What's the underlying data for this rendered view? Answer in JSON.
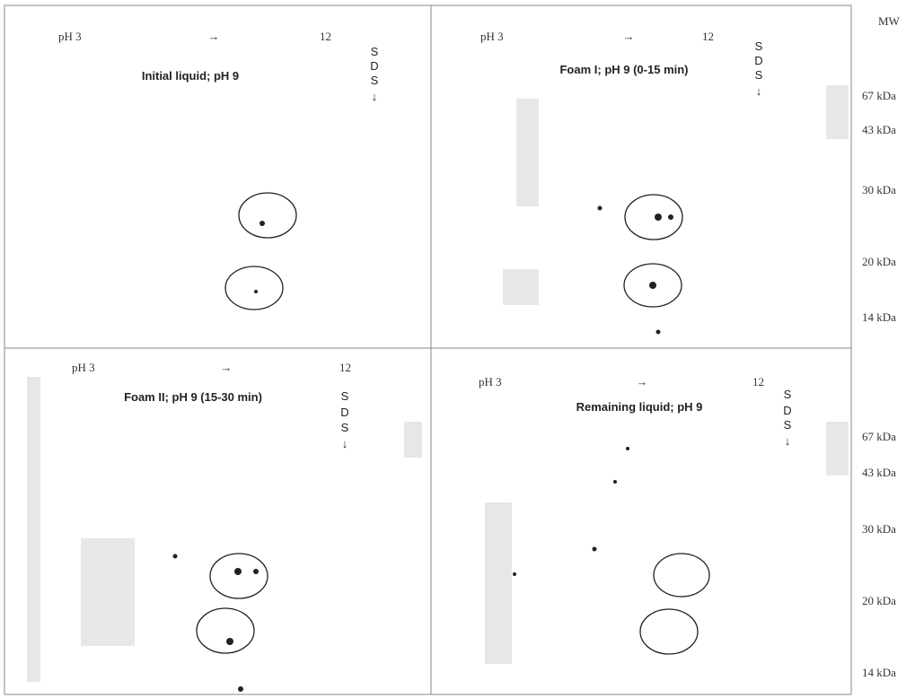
{
  "panels": [
    {
      "ph_start": "pH 3",
      "arrow": "→",
      "ph_end": "12",
      "title": "Initial liquid; pH 9",
      "sds": [
        "S",
        "D",
        "S",
        "↓"
      ]
    },
    {
      "ph_start": "pH 3",
      "arrow": "→",
      "ph_end": "12",
      "title": "Foam I; pH 9 (0-15 min)",
      "sds": [
        "S",
        "D",
        "S",
        "↓"
      ]
    },
    {
      "ph_start": "pH 3",
      "arrow": "→",
      "ph_end": "12",
      "title": "Foam II; pH 9 (15-30 min)",
      "sds": [
        "S",
        "D",
        "S",
        "↓"
      ]
    },
    {
      "ph_start": "pH 3",
      "arrow": "→",
      "ph_end": "12",
      "title": "Remaining liquid; pH 9",
      "sds": [
        "S",
        "D",
        "S",
        "↓"
      ]
    }
  ],
  "mw": {
    "title": "MW",
    "upper": [
      "67 kDa",
      "43 kDa",
      "30 kDa",
      "20 kDa",
      "14 kDa"
    ],
    "lower": [
      "67 kDa",
      "43 kDa",
      "30 kDa",
      "20 kDa",
      "14 kDa"
    ]
  }
}
